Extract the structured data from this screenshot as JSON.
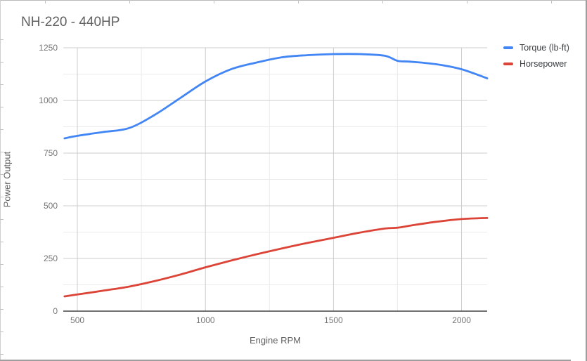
{
  "title": "NH-220 - 440HP",
  "legend": {
    "items": [
      {
        "label": "Torque (lb-ft)",
        "color": "#4285f4"
      },
      {
        "label": "Horsepower",
        "color": "#db4437"
      }
    ]
  },
  "chart_data": {
    "type": "line",
    "smooth": true,
    "title": "NH-220 - 440HP",
    "xlabel": "Engine RPM",
    "ylabel": "Power Output",
    "xlim": [
      445,
      2100
    ],
    "ylim": [
      0,
      1250
    ],
    "x_ticks": [
      500,
      1000,
      1500,
      2000
    ],
    "y_ticks": [
      0,
      250,
      500,
      750,
      1000,
      1250
    ],
    "x_minor_gridlines": [
      750,
      1250,
      1750
    ],
    "y_minor_gridlines": [
      125,
      375,
      625,
      875,
      1125
    ],
    "grid": true,
    "legend_position": "right-top",
    "x": [
      450,
      500,
      600,
      700,
      800,
      900,
      1000,
      1100,
      1200,
      1300,
      1400,
      1500,
      1600,
      1700,
      1750,
      1800,
      1900,
      2000,
      2100
    ],
    "series": [
      {
        "name": "Torque (lb-ft)",
        "color": "#4285f4",
        "values": [
          820,
          832,
          850,
          868,
          930,
          1010,
          1090,
          1148,
          1180,
          1205,
          1215,
          1220,
          1220,
          1212,
          1188,
          1184,
          1172,
          1148,
          1105
        ]
      },
      {
        "name": "Horsepower",
        "color": "#db4437",
        "values": [
          70,
          79,
          97,
          116,
          142,
          173,
          208,
          240,
          270,
          298,
          324,
          348,
          372,
          392,
          396,
          406,
          424,
          437,
          442
        ]
      }
    ]
  }
}
